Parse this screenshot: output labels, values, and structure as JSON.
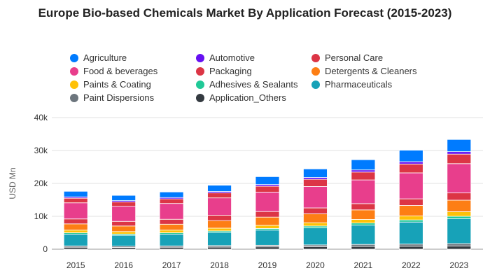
{
  "chart_data": {
    "type": "bar",
    "stacked": true,
    "title": "Europe Bio-based Chemicals Market By Application Forecast (2015-2023)",
    "ylabel": "USD Mn",
    "xlabel": "",
    "ylim": [
      0,
      40000
    ],
    "yticks": [
      "0",
      "10k",
      "20k",
      "30k",
      "40k"
    ],
    "ytick_values": [
      0,
      10000,
      20000,
      30000,
      40000
    ],
    "grid": true,
    "legend_position": "top",
    "categories": [
      "2015",
      "2016",
      "2017",
      "2018",
      "2019",
      "2020",
      "2021",
      "2022",
      "2023"
    ],
    "series": [
      {
        "name": "Application_Others",
        "color": "#343a40",
        "values": [
          600,
          550,
          600,
          650,
          700,
          750,
          850,
          900,
          1000
        ]
      },
      {
        "name": "Paint Dispersions",
        "color": "#6c757d",
        "values": [
          400,
          380,
          400,
          450,
          500,
          550,
          600,
          650,
          700
        ]
      },
      {
        "name": "Pharmaceuticals",
        "color": "#17a2b8",
        "values": [
          3600,
          3300,
          3600,
          4000,
          4600,
          5200,
          5900,
          6700,
          7600
        ]
      },
      {
        "name": "Adhesives & Sealants",
        "color": "#20c997",
        "values": [
          400,
          380,
          400,
          450,
          500,
          550,
          600,
          650,
          700
        ]
      },
      {
        "name": "Paints & Coating",
        "color": "#ffc107",
        "values": [
          800,
          750,
          800,
          850,
          950,
          1000,
          1100,
          1200,
          1400
        ]
      },
      {
        "name": "Detergents & Cleaners",
        "color": "#fd7e14",
        "values": [
          1900,
          1700,
          1800,
          2300,
          2500,
          2700,
          2900,
          3200,
          3500
        ]
      },
      {
        "name": "Packaging",
        "color": "#dc3545",
        "values": [
          1500,
          1400,
          1500,
          1600,
          1700,
          1800,
          1900,
          2000,
          2200
        ]
      },
      {
        "name": "Food & beverages",
        "color": "#e83e8c",
        "values": [
          4900,
          4600,
          4800,
          5300,
          5900,
          6500,
          7200,
          7900,
          8900
        ]
      },
      {
        "name": "Personal Care",
        "color": "#dc3545",
        "values": [
          1400,
          1300,
          1400,
          1500,
          1800,
          2200,
          2400,
          2700,
          2900
        ]
      },
      {
        "name": "Automotive",
        "color": "#6610f2",
        "values": [
          400,
          400,
          400,
          450,
          500,
          550,
          650,
          700,
          750
        ]
      },
      {
        "name": "Agriculture",
        "color": "#007bff",
        "values": [
          1700,
          1600,
          1700,
          1900,
          2400,
          2600,
          3100,
          3500,
          3700
        ]
      }
    ],
    "legend": [
      {
        "name": "Agriculture",
        "color": "#007bff"
      },
      {
        "name": "Automotive",
        "color": "#6610f2"
      },
      {
        "name": "Personal Care",
        "color": "#dc3545"
      },
      {
        "name": "Food & beverages",
        "color": "#e83e8c"
      },
      {
        "name": "Packaging",
        "color": "#dc3545"
      },
      {
        "name": "Detergents & Cleaners",
        "color": "#fd7e14"
      },
      {
        "name": "Paints & Coating",
        "color": "#ffc107"
      },
      {
        "name": "Adhesives & Sealants",
        "color": "#20c997"
      },
      {
        "name": "Pharmaceuticals",
        "color": "#17a2b8"
      },
      {
        "name": "Paint Dispersions",
        "color": "#6c757d"
      },
      {
        "name": "Application_Others",
        "color": "#343a40"
      }
    ]
  }
}
